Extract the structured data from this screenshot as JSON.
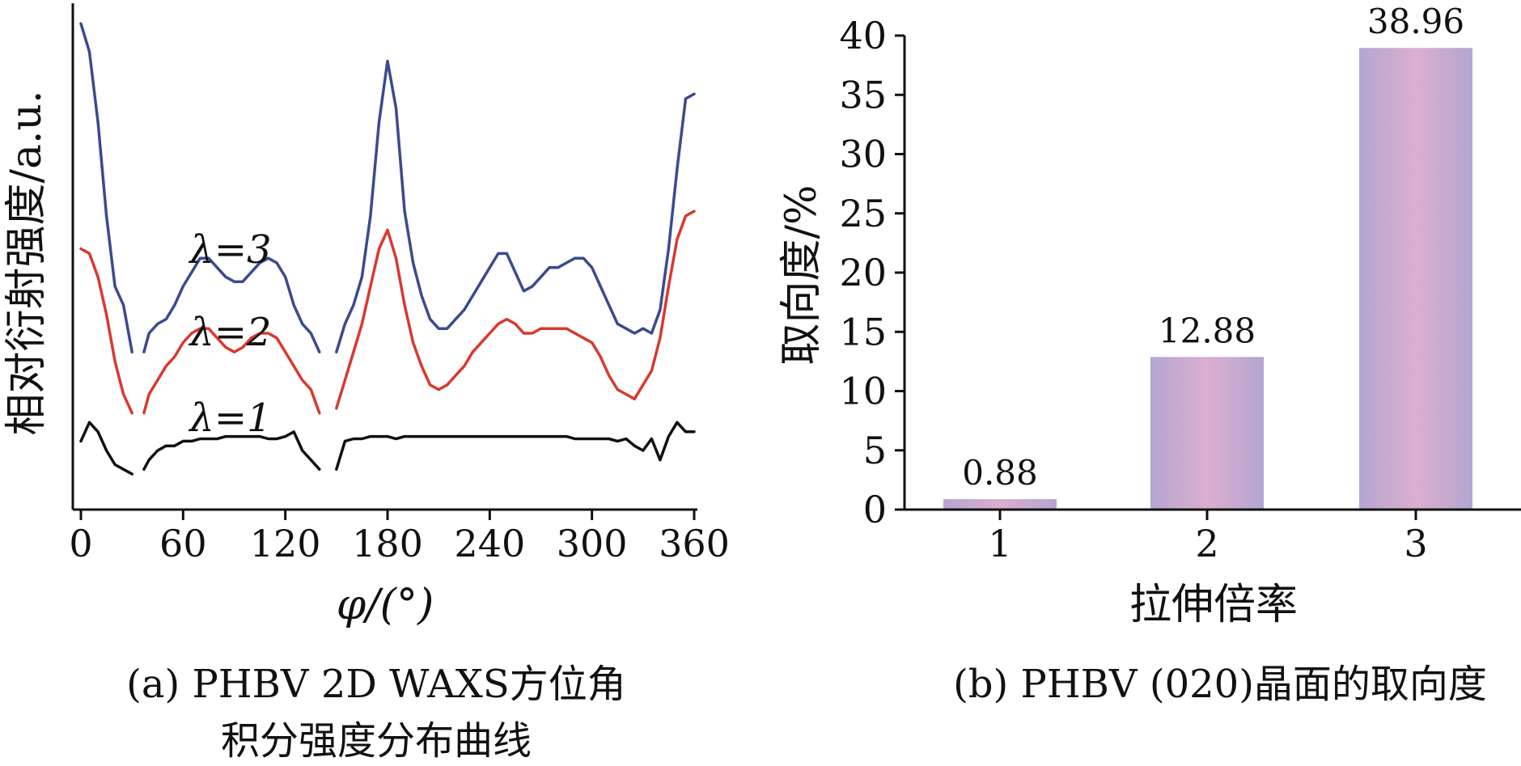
{
  "chart_data": [
    {
      "type": "line",
      "caption_lines": [
        "(a) PHBV 2D WAXS方位角",
        "积分强度分布曲线"
      ],
      "xlabel": "φ/(°)",
      "ylabel": "相对衍射强度/a.u.",
      "xlim": [
        0,
        360
      ],
      "xticks": [
        "0",
        "60",
        "120",
        "180",
        "240",
        "300",
        "360"
      ],
      "colors": {
        "lambda3": "#3b4a8f",
        "lambda2": "#d9392f",
        "lambda1": "#111111"
      },
      "series": [
        {
          "name": "λ=3",
          "segments": [
            {
              "x": [
                0,
                5,
                10,
                15,
                20,
                25,
                30
              ],
              "y": [
                9.6,
                9.0,
                7.5,
                5.5,
                4.0,
                3.6,
                2.6
              ]
            },
            {
              "x": [
                37,
                40,
                45,
                50,
                55,
                60,
                65,
                70,
                75,
                80,
                85,
                90,
                95,
                100,
                105,
                110,
                115,
                120,
                125,
                130,
                135,
                140
              ],
              "y": [
                2.6,
                3.0,
                3.2,
                3.3,
                3.6,
                4.0,
                4.3,
                4.6,
                4.6,
                4.4,
                4.2,
                4.1,
                4.1,
                4.3,
                4.5,
                4.6,
                4.5,
                4.2,
                3.6,
                3.2,
                3.0,
                2.6
              ]
            },
            {
              "x": [
                150,
                155,
                160,
                165,
                170,
                175,
                180,
                185,
                190,
                195,
                200,
                205,
                210,
                215,
                220,
                225,
                230,
                235,
                240,
                245,
                250,
                255,
                260,
                265,
                270,
                275,
                280,
                285,
                290,
                295,
                300,
                305,
                310,
                315,
                320,
                325,
                330,
                335,
                340,
                345,
                350,
                355,
                360
              ],
              "y": [
                2.6,
                3.2,
                3.6,
                4.2,
                5.5,
                7.5,
                8.8,
                7.8,
                5.6,
                4.5,
                3.8,
                3.3,
                3.1,
                3.1,
                3.3,
                3.5,
                3.8,
                4.1,
                4.4,
                4.7,
                4.7,
                4.3,
                3.9,
                4.0,
                4.2,
                4.4,
                4.4,
                4.5,
                4.6,
                4.6,
                4.4,
                4.0,
                3.6,
                3.2,
                3.1,
                3.0,
                3.1,
                3.0,
                3.5,
                4.8,
                6.5,
                8.0,
                8.1
              ]
            }
          ]
        },
        {
          "name": "λ=2",
          "segments": [
            {
              "x": [
                0,
                5,
                10,
                15,
                20,
                25,
                30
              ],
              "y": [
                4.8,
                4.7,
                4.2,
                3.4,
                2.4,
                1.7,
                1.3
              ]
            },
            {
              "x": [
                37,
                40,
                45,
                50,
                55,
                60,
                65,
                70,
                75,
                80,
                85,
                90,
                95,
                100,
                105,
                110,
                115,
                120,
                125,
                130,
                135,
                140
              ],
              "y": [
                1.3,
                1.7,
                2.0,
                2.3,
                2.5,
                2.8,
                3.0,
                3.1,
                3.1,
                2.9,
                2.7,
                2.6,
                2.7,
                2.9,
                3.0,
                3.0,
                2.9,
                2.6,
                2.3,
                2.0,
                1.8,
                1.3
              ]
            },
            {
              "x": [
                150,
                155,
                160,
                165,
                170,
                175,
                180,
                185,
                190,
                195,
                200,
                205,
                210,
                215,
                220,
                225,
                230,
                235,
                240,
                245,
                250,
                255,
                260,
                265,
                270,
                275,
                280,
                285,
                290,
                295,
                300,
                305,
                310,
                315,
                320,
                325,
                330,
                335,
                340,
                345,
                350,
                355,
                360
              ],
              "y": [
                1.4,
                2.0,
                2.6,
                3.2,
                4.0,
                4.8,
                5.2,
                4.6,
                3.6,
                2.8,
                2.3,
                1.9,
                1.8,
                1.9,
                2.1,
                2.3,
                2.6,
                2.8,
                3.0,
                3.2,
                3.3,
                3.2,
                3.0,
                3.0,
                3.1,
                3.1,
                3.1,
                3.1,
                3.0,
                2.9,
                2.8,
                2.5,
                2.1,
                1.8,
                1.7,
                1.6,
                1.9,
                2.2,
                2.9,
                4.0,
                5.0,
                5.5,
                5.6
              ]
            }
          ]
        },
        {
          "name": "λ=1",
          "segments": [
            {
              "x": [
                0,
                5,
                10,
                15,
                20,
                25,
                30
              ],
              "y": [
                0.7,
                1.1,
                0.9,
                0.5,
                0.2,
                0.1,
                0.0
              ]
            },
            {
              "x": [
                37,
                40,
                45,
                50,
                55,
                60,
                65,
                70,
                75,
                80,
                85,
                90,
                95,
                100,
                105,
                110,
                115,
                120,
                125,
                130,
                135,
                140
              ],
              "y": [
                0.1,
                0.3,
                0.5,
                0.6,
                0.6,
                0.7,
                0.7,
                0.75,
                0.75,
                0.75,
                0.8,
                0.8,
                0.8,
                0.8,
                0.8,
                0.75,
                0.75,
                0.8,
                0.9,
                0.5,
                0.3,
                0.1
              ]
            },
            {
              "x": [
                150,
                155,
                160,
                165,
                170,
                175,
                180,
                185,
                190,
                195,
                200,
                205,
                210,
                215,
                220,
                225,
                230,
                235,
                240,
                245,
                250,
                255,
                260,
                265,
                270,
                275,
                280,
                285,
                290,
                295,
                300,
                305,
                310,
                315,
                320,
                325,
                330,
                335,
                340,
                345,
                350,
                355,
                360
              ],
              "y": [
                0.1,
                0.7,
                0.75,
                0.75,
                0.8,
                0.8,
                0.8,
                0.75,
                0.8,
                0.8,
                0.8,
                0.8,
                0.8,
                0.8,
                0.8,
                0.8,
                0.8,
                0.8,
                0.8,
                0.8,
                0.8,
                0.8,
                0.8,
                0.8,
                0.8,
                0.8,
                0.8,
                0.8,
                0.75,
                0.75,
                0.75,
                0.75,
                0.75,
                0.7,
                0.75,
                0.6,
                0.5,
                0.75,
                0.3,
                0.8,
                1.1,
                0.9,
                0.9
              ]
            }
          ]
        }
      ],
      "ylim": [
        -0.5,
        10
      ]
    },
    {
      "type": "bar",
      "caption": "(b) PHBV (020)晶面的取向度",
      "xlabel": "拉伸倍率",
      "ylabel": "取向度/%",
      "categories": [
        "1",
        "2",
        "3"
      ],
      "values": [
        0.88,
        12.88,
        38.96
      ],
      "value_labels": [
        "0.88",
        "12.88",
        "38.96"
      ],
      "ylim": [
        0,
        40
      ],
      "yticks": [
        "0",
        "5",
        "10",
        "15",
        "20",
        "25",
        "30",
        "35",
        "40"
      ],
      "colors": {
        "bar_edge": "#b3a6d0",
        "bar_center": "#dcaed0"
      }
    }
  ]
}
